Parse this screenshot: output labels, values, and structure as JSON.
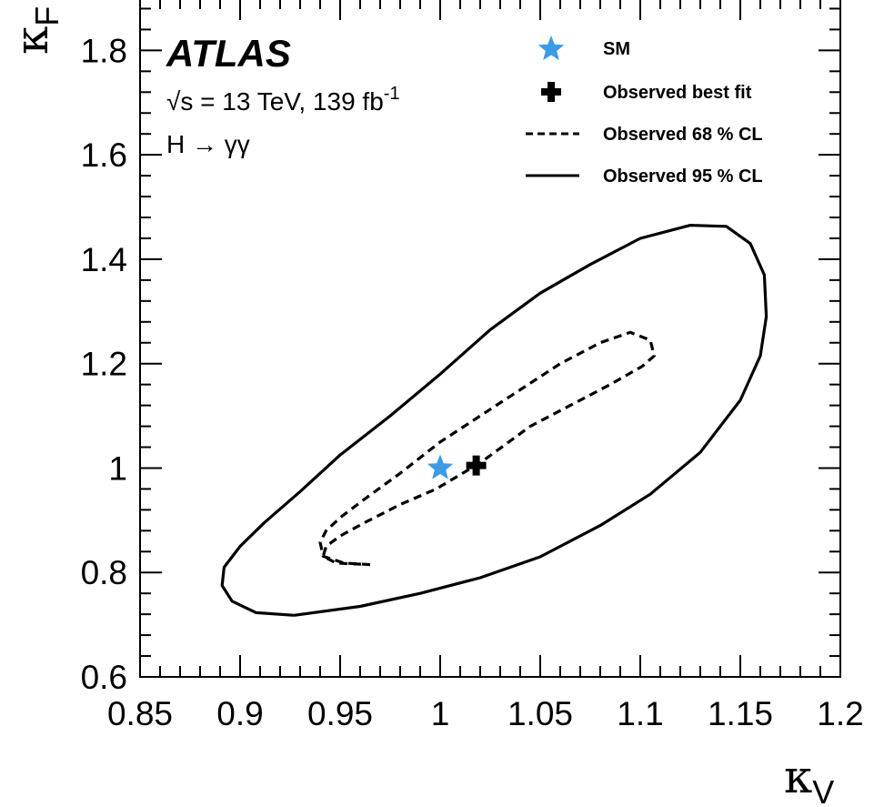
{
  "chart_data": {
    "type": "line",
    "xlabel": "κ",
    "xlabel_sub": "V",
    "ylabel": "κ",
    "ylabel_sub": "F",
    "xlim": [
      0.85,
      1.2
    ],
    "ylim": [
      0.6,
      1.9
    ],
    "xticks": [
      0.85,
      0.9,
      0.95,
      1.0,
      1.05,
      1.1,
      1.15,
      1.2
    ],
    "xtick_labels": [
      "0.85",
      "0.9",
      "0.95",
      "1",
      "1.05",
      "1.1",
      "1.15",
      "1.2"
    ],
    "yticks": [
      0.6,
      0.8,
      1.0,
      1.2,
      1.4,
      1.6,
      1.8
    ],
    "ytick_labels": [
      "0.6",
      "0.8",
      "1",
      "1.2",
      "1.4",
      "1.6",
      "1.8"
    ],
    "grid": false,
    "legend_position": "top-right",
    "annotations": {
      "experiment": "ATLAS",
      "energy_prefix": "√s = 13 TeV, 139 fb",
      "energy_sup": "-1",
      "channel": "H → γγ"
    },
    "points": [
      {
        "name": "SM",
        "x": 1.0,
        "y": 1.0,
        "marker": "star",
        "color": "#3b9be6"
      },
      {
        "name": "Observed best fit",
        "x": 1.018,
        "y": 1.005,
        "marker": "cross",
        "color": "#000000"
      }
    ],
    "series": [
      {
        "name": "Observed 68 % CL",
        "style": "dashed",
        "color": "#000000",
        "x": [
          0.965,
          0.952,
          0.9415,
          0.94,
          0.943,
          0.95,
          0.962,
          0.98,
          1.0,
          1.02,
          1.04,
          1.06,
          1.08,
          1.095,
          1.105,
          1.107,
          1.101,
          1.085,
          1.065,
          1.045,
          1.02,
          0.998,
          0.98,
          0.962,
          0.95,
          0.943,
          0.9415,
          0.948,
          0.965
        ],
        "y": [
          0.815,
          0.818,
          0.831,
          0.858,
          0.88,
          0.905,
          0.94,
          0.99,
          1.05,
          1.1,
          1.15,
          1.2,
          1.24,
          1.26,
          1.245,
          1.215,
          1.195,
          1.16,
          1.12,
          1.08,
          1.01,
          0.96,
          0.93,
          0.895,
          0.87,
          0.85,
          0.831,
          0.818,
          0.815
        ]
      },
      {
        "name": "Observed 95 % CL",
        "style": "solid",
        "color": "#000000",
        "x": [
          0.927,
          0.908,
          0.896,
          0.891,
          0.892,
          0.9,
          0.912,
          0.93,
          0.95,
          0.975,
          1.0,
          1.025,
          1.05,
          1.075,
          1.1,
          1.125,
          1.143,
          1.155,
          1.162,
          1.163,
          1.16,
          1.15,
          1.13,
          1.105,
          1.08,
          1.05,
          1.02,
          0.99,
          0.96,
          0.927
        ],
        "y": [
          0.718,
          0.723,
          0.745,
          0.775,
          0.81,
          0.85,
          0.895,
          0.955,
          1.025,
          1.1,
          1.18,
          1.265,
          1.335,
          1.39,
          1.44,
          1.465,
          1.463,
          1.43,
          1.37,
          1.29,
          1.215,
          1.13,
          1.03,
          0.95,
          0.89,
          0.83,
          0.79,
          0.76,
          0.735,
          0.718
        ]
      }
    ]
  }
}
